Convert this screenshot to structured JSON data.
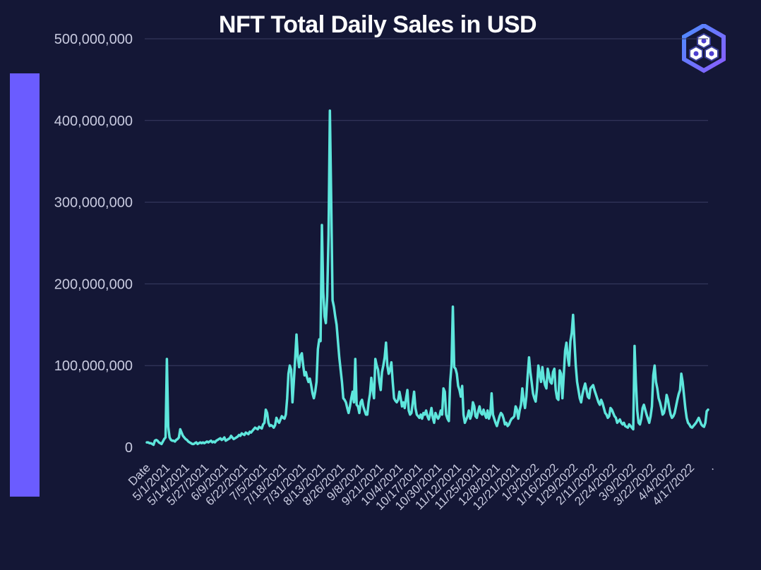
{
  "chart_data": {
    "type": "line",
    "title": "NFT Total Daily Sales in USD",
    "xlabel": "",
    "ylabel": "",
    "ylim": [
      0,
      500000000
    ],
    "yticks": [
      0,
      100000000,
      200000000,
      300000000,
      400000000,
      500000000
    ],
    "ytick_labels": [
      "0",
      "100,000,000",
      "200,000,000",
      "300,000,000",
      "400,000,000",
      "500,000,000"
    ],
    "xtick_labels": [
      "Date",
      "5/1/2021",
      "5/14/2021",
      "5/27/2021",
      "6/9/2021",
      "6/22/2021",
      "7/5/2021",
      "7/18/2021",
      "7/31/2021",
      "8/13/2021",
      "8/26/2021",
      "9/8/2021",
      "9/21/2021",
      "10/4/2021",
      "10/17/2021",
      "10/30/2021",
      "11/12/2021",
      "11/25/2021",
      "12/8/2021",
      "12/21/2021",
      "1/3/2022",
      "1/16/2022",
      "1/29/2022",
      "2/11/2022",
      "2/24/2022",
      "3/9/2022",
      "3/22/2022",
      "4/4/2022",
      "4/17/2022",
      "."
    ],
    "grid": true,
    "colors": {
      "line": "#5ee6dc",
      "accent_bar": "#6b5cff",
      "background": "#141736"
    },
    "series": [
      {
        "x_range": [
          "5/1/2021",
          "4/24/2022"
        ],
        "values_millions": [
          6,
          6,
          5,
          5,
          4,
          3,
          8,
          9,
          8,
          6,
          5,
          4,
          7,
          10,
          12,
          108,
          25,
          12,
          9,
          8,
          8,
          7,
          9,
          10,
          12,
          22,
          18,
          14,
          12,
          10,
          9,
          7,
          6,
          5,
          4,
          4,
          5,
          6,
          4,
          5,
          6,
          5,
          6,
          5,
          6,
          7,
          6,
          7,
          8,
          6,
          7,
          6,
          8,
          9,
          10,
          11,
          9,
          10,
          12,
          8,
          9,
          10,
          11,
          14,
          12,
          10,
          11,
          12,
          13,
          15,
          14,
          17,
          16,
          15,
          18,
          17,
          16,
          19,
          18,
          20,
          22,
          24,
          23,
          22,
          25,
          24,
          23,
          28,
          30,
          46,
          42,
          30,
          26,
          27,
          26,
          24,
          27,
          36,
          32,
          30,
          34,
          38,
          36,
          35,
          40,
          60,
          90,
          100,
          95,
          55,
          80,
          108,
          138,
          110,
          98,
          112,
          115,
          100,
          88,
          92,
          85,
          80,
          84,
          76,
          66,
          60,
          68,
          80,
          120,
          132,
          130,
          272,
          190,
          160,
          152,
          185,
          260,
          412,
          300,
          180,
          172,
          160,
          150,
          130,
          110,
          95,
          80,
          60,
          58,
          55,
          48,
          42,
          50,
          60,
          68,
          55,
          108,
          52,
          50,
          42,
          55,
          58,
          50,
          45,
          40,
          40,
          55,
          65,
          85,
          70,
          60,
          108,
          100,
          95,
          80,
          70,
          92,
          100,
          110,
          128,
          100,
          90,
          95,
          104,
          80,
          60,
          57,
          55,
          58,
          68,
          60,
          50,
          55,
          48,
          60,
          70,
          45,
          40,
          42,
          55,
          68,
          48,
          40,
          38,
          36,
          40,
          35,
          42,
          40,
          45,
          38,
          34,
          40,
          48,
          36,
          30,
          42,
          38,
          35,
          38,
          45,
          40,
          72,
          68,
          40,
          35,
          32,
          80,
          100,
          172,
          98,
          96,
          90,
          75,
          70,
          62,
          75,
          40,
          30,
          34,
          38,
          45,
          35,
          40,
          55,
          50,
          38,
          36,
          44,
          50,
          42,
          40,
          46,
          40,
          36,
          45,
          35,
          40,
          66,
          40,
          35,
          30,
          26,
          32,
          38,
          42,
          40,
          35,
          28,
          30,
          26,
          28,
          32,
          35,
          36,
          38,
          50,
          46,
          35,
          45,
          52,
          72,
          58,
          48,
          62,
          88,
          110,
          92,
          80,
          66,
          60,
          56,
          72,
          100,
          90,
          80,
          98,
          84,
          76,
          72,
          96,
          88,
          80,
          78,
          92,
          96,
          70,
          60,
          58,
          94,
          90,
          60,
          88,
          118,
          128,
          110,
          100,
          130,
          140,
          162,
          130,
          100,
          80,
          70,
          60,
          55,
          65,
          72,
          78,
          70,
          62,
          60,
          72,
          74,
          76,
          70,
          65,
          60,
          55,
          52,
          58,
          54,
          48,
          42,
          40,
          36,
          38,
          48,
          46,
          42,
          38,
          36,
          30,
          32,
          34,
          30,
          28,
          30,
          26,
          25,
          24,
          28,
          26,
          24,
          22,
          124,
          80,
          45,
          30,
          28,
          35,
          48,
          52,
          46,
          40,
          35,
          30,
          38,
          50,
          88,
          100,
          80,
          72,
          60,
          55,
          48,
          40,
          42,
          50,
          64,
          58,
          48,
          40,
          36,
          38,
          42,
          50,
          58,
          65,
          70,
          90,
          80,
          64,
          48,
          36,
          30,
          28,
          25,
          24,
          26,
          28,
          30,
          33,
          36,
          32,
          28,
          26,
          25,
          30,
          44,
          46
        ]
      }
    ]
  },
  "logo": {
    "icon": "hexagon-cluster-logo"
  }
}
